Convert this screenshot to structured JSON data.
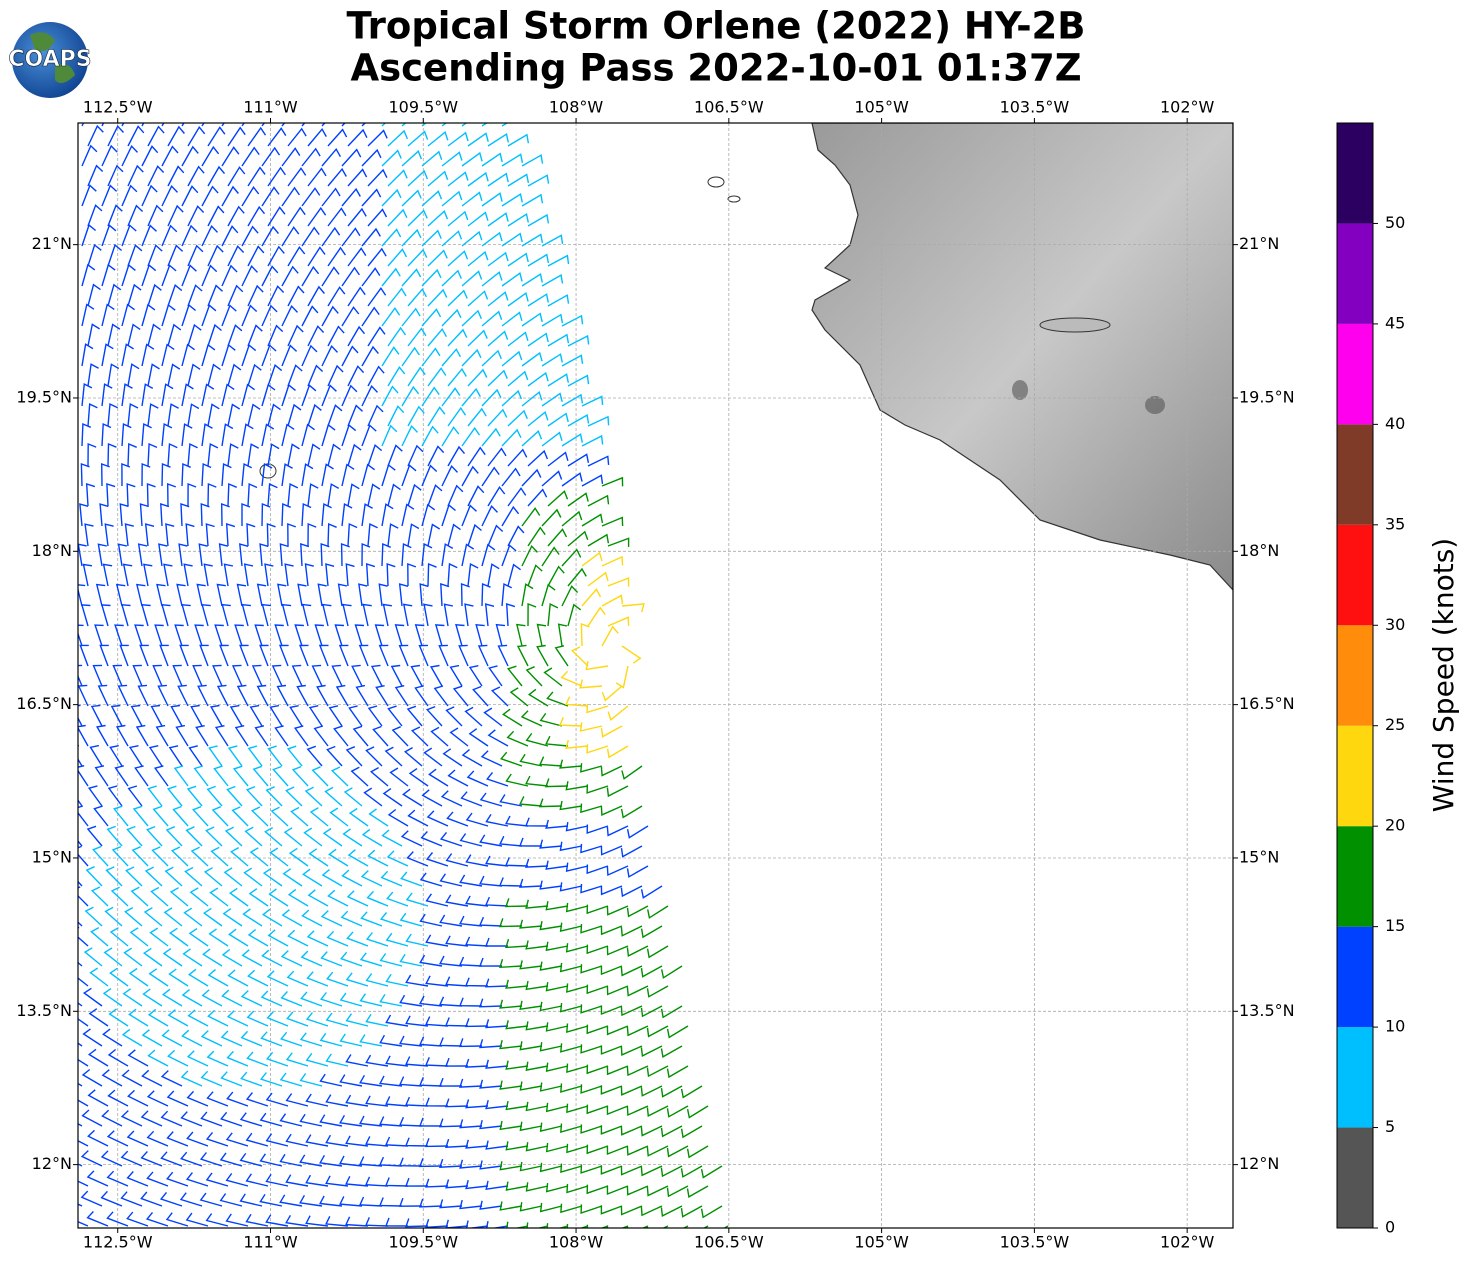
{
  "chart_data": {
    "type": "map",
    "title": "Tropical Storm Orlene (2022) HY-2B",
    "subtitle": "Ascending Pass 2022-10-01 01:37Z",
    "logo": "COAPS",
    "xlim": [
      -112.89,
      -101.55
    ],
    "ylim": [
      11.38,
      22.19
    ],
    "xticks": [
      {
        "value": -112.5,
        "label": "112.5°W"
      },
      {
        "value": -111,
        "label": "111°W"
      },
      {
        "value": -109.5,
        "label": "109.5°W"
      },
      {
        "value": -108,
        "label": "108°W"
      },
      {
        "value": -106.5,
        "label": "106.5°W"
      },
      {
        "value": -105,
        "label": "105°W"
      },
      {
        "value": -103.5,
        "label": "103.5°W"
      },
      {
        "value": -102,
        "label": "102°W"
      }
    ],
    "yticks": [
      {
        "value": 12,
        "label": "12°N"
      },
      {
        "value": 13.5,
        "label": "13.5°N"
      },
      {
        "value": 15,
        "label": "15°N"
      },
      {
        "value": 16.5,
        "label": "16.5°N"
      },
      {
        "value": 18,
        "label": "18°N"
      },
      {
        "value": 19.5,
        "label": "19.5°N"
      },
      {
        "value": 21,
        "label": "21°N"
      }
    ],
    "grid": true,
    "colorbar": {
      "label": "Wind Speed (knots)",
      "bounds": [
        0,
        5,
        10,
        15,
        20,
        25,
        30,
        35,
        40,
        45,
        50,
        55
      ],
      "colors": [
        "#555555",
        "#00bfff",
        "#0040ff",
        "#009000",
        "#ffd70f",
        "#ff8c0a",
        "#ff1010",
        "#803a28",
        "#ff00ee",
        "#8400c0",
        "#2c0060"
      ],
      "ticks": [
        0,
        5,
        10,
        15,
        20,
        25,
        30,
        35,
        40,
        45,
        50
      ]
    }
  }
}
